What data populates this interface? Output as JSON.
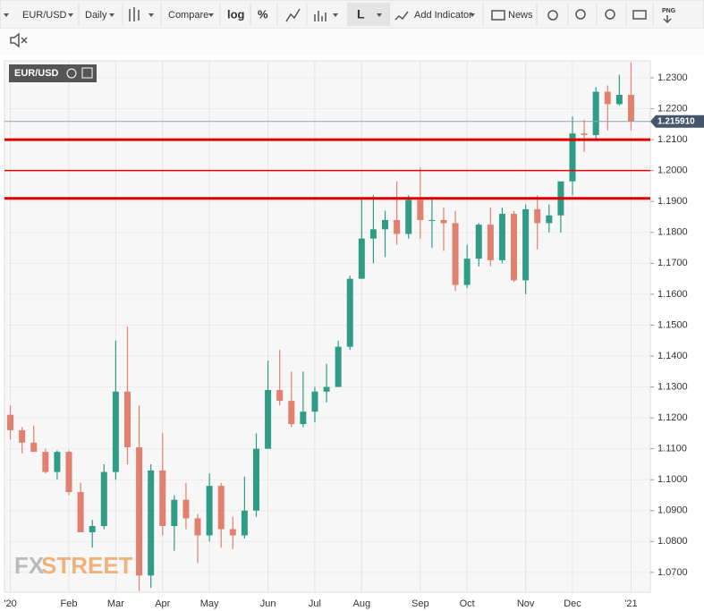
{
  "toolbar": {
    "symbol": "EUR/USD",
    "interval": "Daily",
    "compare": "Compare",
    "log": "log",
    "percent": "%",
    "line_style": "L",
    "add_indicator": "Add Indicator",
    "news": "News",
    "png": "PNG"
  },
  "watermark": {
    "fx": "FX",
    "street": "STREET"
  },
  "chart_data": {
    "type": "candlestick",
    "title": "EUR/USD",
    "categories": [
      "'20",
      null,
      null,
      null,
      null,
      "Feb",
      null,
      null,
      null,
      "Mar",
      null,
      null,
      null,
      "Apr",
      null,
      null,
      null,
      "May",
      null,
      null,
      null,
      null,
      "Jun",
      null,
      null,
      null,
      "Jul",
      null,
      null,
      null,
      "Aug",
      null,
      null,
      null,
      null,
      "Sep",
      null,
      null,
      null,
      "Oct",
      null,
      null,
      null,
      null,
      "Nov",
      null,
      null,
      null,
      "Dec",
      null,
      null,
      null,
      null,
      "'21"
    ],
    "series": [
      {
        "name": "EUR/USD",
        "up_color": "#2f9c86",
        "down_color": "#e2806f",
        "open": [
          1.121,
          1.116,
          1.112,
          1.109,
          1.1025,
          1.109,
          1.096,
          1.083,
          1.085,
          1.1025,
          1.1285,
          1.1105,
          1.069,
          1.103,
          1.085,
          1.0935,
          1.0875,
          1.082,
          1.098,
          1.084,
          1.082,
          1.09,
          1.11,
          1.129,
          1.1255,
          1.118,
          1.122,
          1.1285,
          1.13,
          1.143,
          1.165,
          1.178,
          1.181,
          1.184,
          1.1795,
          1.1905,
          1.184,
          1.184,
          1.183,
          1.163,
          1.1715,
          1.1825,
          1.171,
          1.186,
          1.1645,
          1.1875,
          1.183,
          1.1855,
          1.1965,
          1.212,
          1.2115,
          1.2255,
          1.2215,
          1.2245
        ],
        "high": [
          1.124,
          1.117,
          1.1175,
          1.11,
          1.1095,
          1.1095,
          1.099,
          1.087,
          1.105,
          1.145,
          1.1495,
          1.124,
          1.105,
          1.115,
          1.095,
          1.099,
          1.089,
          1.102,
          1.099,
          1.088,
          1.101,
          1.115,
          1.1385,
          1.142,
          1.135,
          1.135,
          1.13,
          1.1375,
          1.145,
          1.166,
          1.191,
          1.192,
          1.187,
          1.1965,
          1.192,
          1.201,
          1.1915,
          1.188,
          1.187,
          1.176,
          1.183,
          1.188,
          1.188,
          1.187,
          1.189,
          1.192,
          1.189,
          1.196,
          1.2175,
          1.2165,
          1.227,
          1.2275,
          1.231,
          1.235
        ],
        "low": [
          1.113,
          1.1085,
          1.109,
          1.102,
          1.1,
          1.095,
          1.083,
          1.078,
          1.084,
          1.1,
          1.105,
          1.064,
          1.065,
          1.082,
          1.077,
          1.084,
          1.073,
          1.08,
          1.078,
          1.0775,
          1.081,
          1.088,
          1.11,
          1.124,
          1.117,
          1.117,
          1.1185,
          1.125,
          1.13,
          1.142,
          1.165,
          1.17,
          1.172,
          1.176,
          1.178,
          1.178,
          1.175,
          1.174,
          1.161,
          1.162,
          1.169,
          1.169,
          1.17,
          1.164,
          1.16,
          1.1745,
          1.18,
          1.18,
          1.192,
          1.206,
          1.21,
          1.213,
          1.221,
          1.213
        ],
        "close": [
          1.116,
          1.112,
          1.109,
          1.1025,
          1.109,
          1.096,
          1.083,
          1.085,
          1.1025,
          1.1285,
          1.1105,
          1.069,
          1.103,
          1.085,
          1.0935,
          1.0875,
          1.082,
          1.098,
          1.084,
          1.082,
          1.09,
          1.11,
          1.129,
          1.1255,
          1.118,
          1.122,
          1.1285,
          1.13,
          1.143,
          1.165,
          1.178,
          1.181,
          1.184,
          1.1795,
          1.1905,
          1.184,
          1.184,
          1.183,
          1.163,
          1.1715,
          1.1825,
          1.171,
          1.186,
          1.1645,
          1.1875,
          1.183,
          1.1855,
          1.1965,
          1.212,
          1.2115,
          1.2255,
          1.2215,
          1.2245,
          1.2159
        ]
      }
    ],
    "ylim": [
      1.0636,
      1.2355
    ],
    "yticks": [
      {
        "value": 1.07,
        "label": "1.0700"
      },
      {
        "value": 1.08,
        "label": "1.0800"
      },
      {
        "value": 1.09,
        "label": "1.0900"
      },
      {
        "value": 1.1,
        "label": "1.1000"
      },
      {
        "value": 1.11,
        "label": "1.1100"
      },
      {
        "value": 1.12,
        "label": "1.1200"
      },
      {
        "value": 1.13,
        "label": "1.1300"
      },
      {
        "value": 1.14,
        "label": "1.1400"
      },
      {
        "value": 1.15,
        "label": "1.1500"
      },
      {
        "value": 1.16,
        "label": "1.1600"
      },
      {
        "value": 1.17,
        "label": "1.1700"
      },
      {
        "value": 1.18,
        "label": "1.1800"
      },
      {
        "value": 1.19,
        "label": "1.1900"
      },
      {
        "value": 1.2,
        "label": "1.2000"
      },
      {
        "value": 1.21,
        "label": "1.2100"
      },
      {
        "value": 1.22,
        "label": "1.2200"
      },
      {
        "value": 1.23,
        "label": "1.2300"
      }
    ],
    "grid": true,
    "levels": [
      {
        "value": 1.21,
        "weight": "bold"
      },
      {
        "value": 1.2,
        "weight": "normal"
      },
      {
        "value": 1.191,
        "weight": "bold"
      }
    ],
    "level_color": "#e00000",
    "last_price": {
      "value": 1.21591,
      "label": "1.215910"
    }
  }
}
